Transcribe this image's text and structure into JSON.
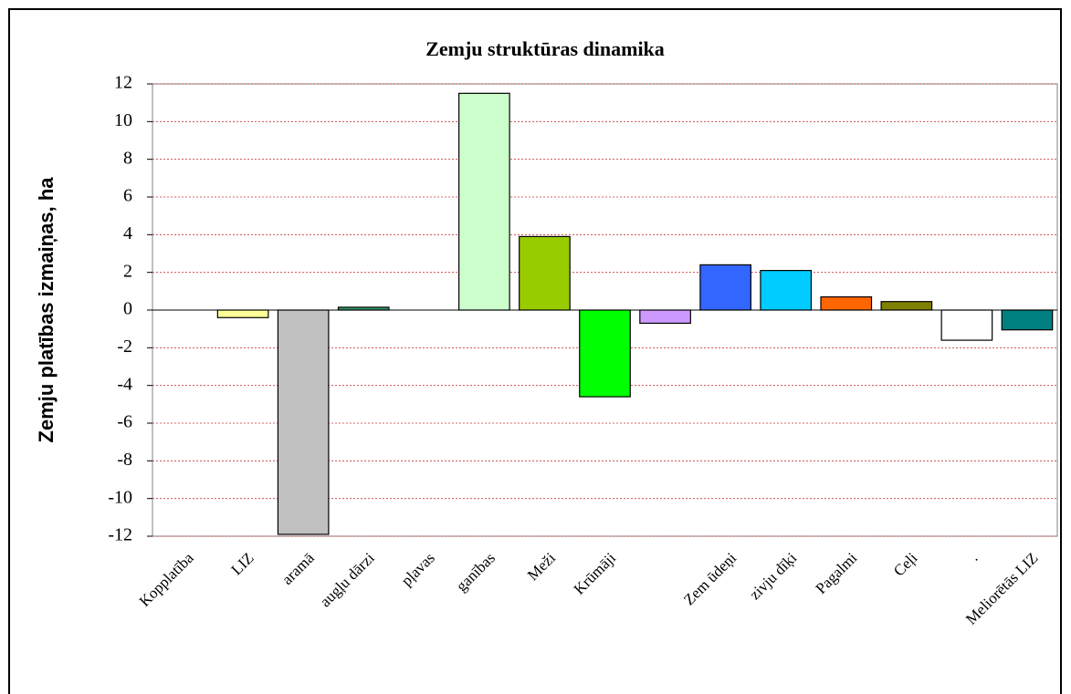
{
  "chart_data": {
    "type": "bar",
    "title": "Zemju struktūras dinamika",
    "y_label": "Zemju platības izmaiņas, ha",
    "categories": [
      "Kopplatība",
      "LIZ",
      "aramā",
      "augļu dārzi",
      "pļavas",
      "ganības",
      "Meži",
      "Krūmāji",
      null,
      "Zem ūdeņi",
      "zivju dīķi",
      "Pagalmi",
      "Ceļi",
      ".",
      "Meliorētās LIZ"
    ],
    "values": [
      0,
      -0.4,
      -11.9,
      0.15,
      0,
      11.5,
      3.9,
      -4.6,
      -0.7,
      2.4,
      2.1,
      0.7,
      0.45,
      -1.6,
      -1.05
    ],
    "colors": [
      "#ffffff",
      "#ffff99",
      "#c0c0c0",
      "#339966",
      "#ffffff",
      "#ccffcc",
      "#99cc00",
      "#00ff00",
      "#cc99ff",
      "#3366ff",
      "#00ccff",
      "#ff6600",
      "#808000",
      "#ffffff",
      "#008080"
    ],
    "ylim": [
      -12,
      12
    ],
    "yticks": [
      -12,
      -10,
      -8,
      -6,
      -4,
      -2,
      0,
      2,
      4,
      6,
      8,
      10,
      12
    ],
    "grid": true
  }
}
